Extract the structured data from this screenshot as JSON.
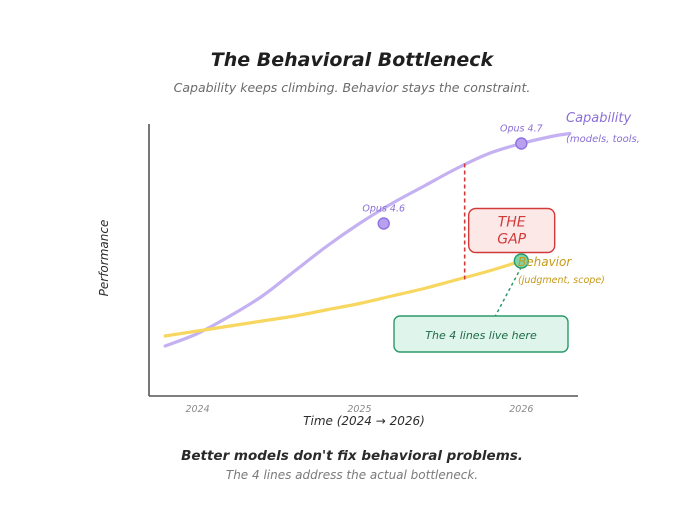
{
  "chart_data": {
    "type": "line",
    "title": "The Behavioral Bottleneck",
    "subtitle": "Capability keeps climbing. Behavior stays the constraint.",
    "xlabel": "Time (2024 → 2026)",
    "ylabel": "Performance",
    "x_ticks": [
      "2024",
      "2025",
      "2026"
    ],
    "xlim": [
      2023.7,
      2026.35
    ],
    "ylim": [
      0,
      100
    ],
    "grid": false,
    "series": [
      {
        "name": "Capability",
        "note": "(models, tools,",
        "color": "#c4b1f2",
        "x": [
          2023.8,
          2024.0,
          2024.2,
          2024.4,
          2024.6,
          2024.8,
          2025.0,
          2025.2,
          2025.4,
          2025.6,
          2025.8,
          2026.0,
          2026.2,
          2026.3
        ],
        "values": [
          12,
          17,
          24,
          32,
          42,
          52,
          61,
          69,
          76,
          83,
          89,
          93,
          96,
          97
        ]
      },
      {
        "name": "Behavior",
        "note": "(judgment, scope)",
        "color": "#f7d75f",
        "x": [
          2023.8,
          2024.0,
          2024.2,
          2024.4,
          2024.6,
          2024.8,
          2025.0,
          2025.2,
          2025.4,
          2025.6,
          2025.8,
          2026.0
        ],
        "values": [
          16,
          18,
          20,
          22,
          24,
          26.5,
          29,
          32,
          35,
          38.5,
          42,
          46
        ]
      }
    ],
    "points": [
      {
        "label": "Opus 4.6",
        "series": "Capability",
        "x": 2025.15,
        "y": 61,
        "color": "#b7a1ee"
      },
      {
        "label": "Opus 4.7",
        "series": "Capability",
        "x": 2026.0,
        "y": 93,
        "color": "#b7a1ee"
      },
      {
        "label": "",
        "series": "Behavior",
        "x": 2026.0,
        "y": 46,
        "color": "#7fd3a6"
      }
    ],
    "gap": {
      "x": 2025.65,
      "y_low": 37.5,
      "y_high": 85,
      "label": [
        "THE",
        "GAP"
      ],
      "color": "#d23a3a"
    },
    "annotation": {
      "text": "The 4 lines live here",
      "target_x": 2026.0,
      "target_y": 46,
      "color": "#2a9a6a"
    }
  },
  "footer": {
    "line1": "Better models don't fix behavioral problems.",
    "line2": "The 4 lines address the actual bottleneck."
  }
}
